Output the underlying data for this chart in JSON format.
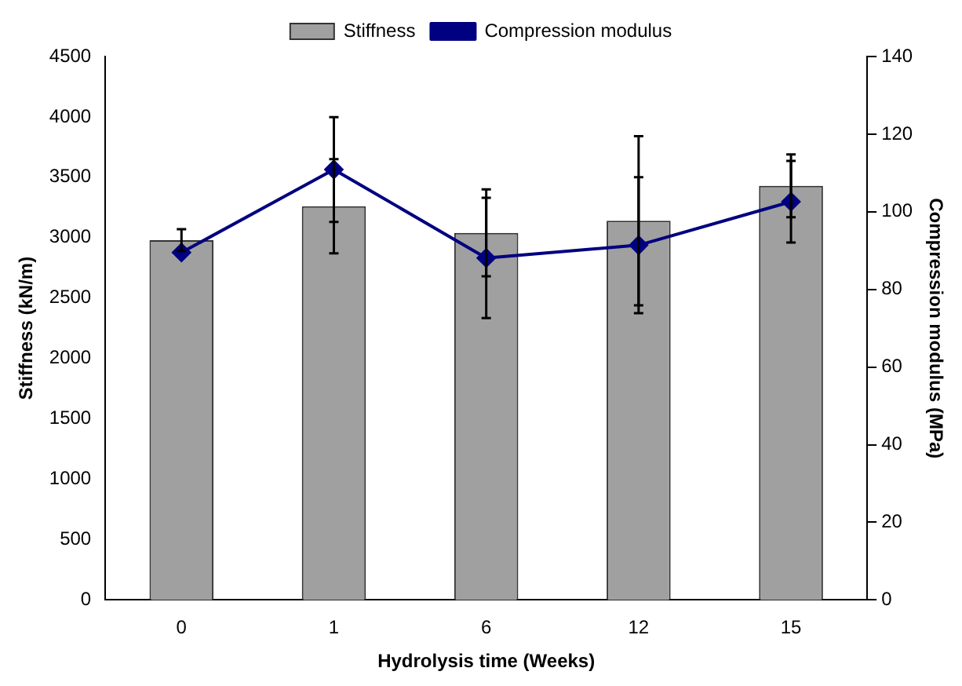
{
  "chart_data": {
    "type": "bar",
    "xlabel": "Hydrolysis time (Weeks)",
    "ylabel": "Stiffness (kN/m)",
    "y2label": "Compression modulus (MPa)",
    "categories": [
      "0",
      "1",
      "6",
      "12",
      "15"
    ],
    "series": [
      {
        "name": "Stiffness",
        "color": "#a0a0a0",
        "values": [
          2980,
          3260,
          3040,
          3140,
          3430
        ],
        "errors": [
          90,
          390,
          360,
          700,
          260
        ]
      },
      {
        "name": "Compression modulus",
        "type": "line",
        "axis": "y2",
        "color": "#000080",
        "values": [
          89.5,
          110.9,
          88.1,
          91.4,
          102.6
        ],
        "errors": [
          null,
          13.5,
          15.5,
          17.5,
          10.5
        ]
      }
    ],
    "ylim": [
      0,
      4500
    ],
    "yticks": [
      0,
      500,
      1000,
      1500,
      2000,
      2500,
      3000,
      3500,
      4000,
      4500
    ],
    "y2lim": [
      0,
      140
    ],
    "y2ticks": [
      0,
      20,
      40,
      60,
      80,
      100,
      120,
      140
    ],
    "grid": false,
    "legend": "top",
    "marker": "diamond",
    "line_style": "solid"
  }
}
